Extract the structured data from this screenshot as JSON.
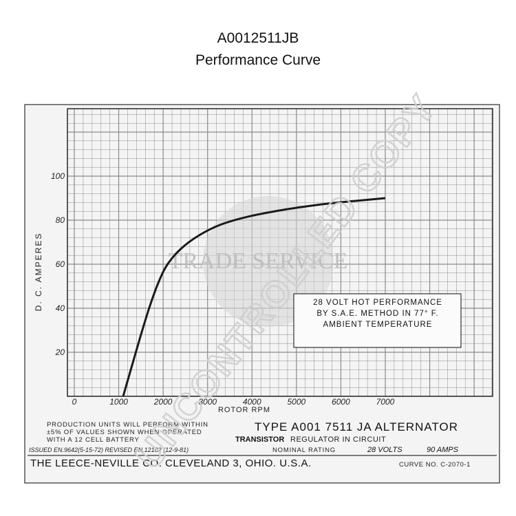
{
  "header": {
    "part_number": "A0012511JB",
    "subtitle": "Performance Curve"
  },
  "chart_data": {
    "type": "line",
    "xlabel": "ROTOR RPM",
    "ylabel": "D. C. AMPERES",
    "x_ticks": [
      "0",
      "1000",
      "2000",
      "3000",
      "4000",
      "5000",
      "6000",
      "7000"
    ],
    "y_ticks": [
      "20",
      "40",
      "60",
      "80",
      "100"
    ],
    "xlim": [
      0,
      7000
    ],
    "ylim": [
      0,
      100
    ],
    "grid": true,
    "series": [
      {
        "x": [
          1100,
          1300,
          1500,
          1700,
          1900,
          2100,
          2400,
          2800,
          3300,
          4000,
          4800,
          5500,
          6200,
          7000
        ],
        "values": [
          0,
          14,
          28,
          41,
          52,
          60,
          67,
          73,
          78,
          82,
          85,
          87,
          88.5,
          90
        ]
      }
    ],
    "annotation": [
      "28 VOLT HOT PERFORMANCE",
      "BY S.A.E. METHOD IN 77° F.",
      "AMBIENT TEMPERATURE"
    ]
  },
  "footer": {
    "production_lines": [
      "PRODUCTION UNITS WILL PERFORM WITHIN",
      "±5% OF VALUES SHOWN WHEN OPERATED",
      "WITH A 12 CELL BATTERY"
    ],
    "type_line": "TYPE A001 7511 JA ALTERNATOR",
    "regulator_prefix": "TRANSISTOR",
    "regulator_suffix": "REGULATOR IN CIRCUIT",
    "issued": "ISSUED EN.9642(5-15-72) REVISED EN.12182 (12-9-81)",
    "nominal_label": "NOMINAL RATING",
    "volts": "28 VOLTS",
    "amps": "90 AMPS",
    "company": "THE LEECE-NEVILLE CO. CLEVELAND 3, OHIO. U.S.A.",
    "curve_no": "CURVE NO. C-2070-1"
  },
  "watermarks": {
    "center": "TRADE SERVICE",
    "diagonal": "UNCONTROLLED COPY"
  },
  "colors": {
    "grid": "#8a8a8a",
    "curve": "#1a1a1a",
    "watermark": "#c9c9c9"
  }
}
